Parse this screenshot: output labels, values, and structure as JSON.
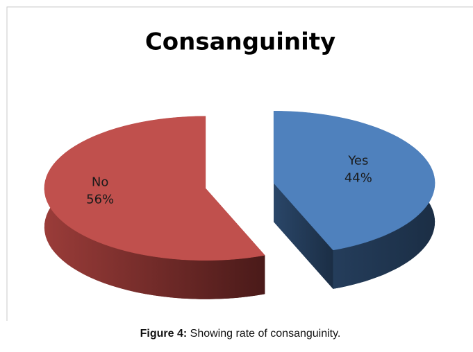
{
  "chart_data": {
    "type": "pie3d",
    "title": "Consanguinity",
    "categories": [
      "Yes",
      "No"
    ],
    "values": [
      44,
      56
    ],
    "value_labels": [
      "44%",
      "56%"
    ],
    "colors": [
      "#4f81bd",
      "#c0504d"
    ],
    "caption": {
      "label": "Figure 4:",
      "text": "Showing rate of consanguinity."
    }
  }
}
